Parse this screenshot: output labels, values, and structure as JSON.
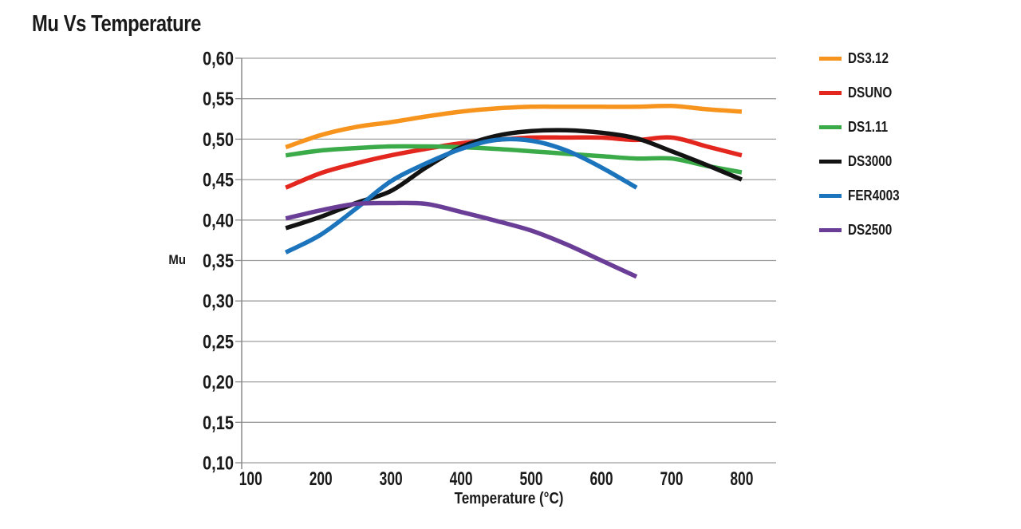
{
  "page": {
    "title": "Mu Vs Temperature"
  },
  "colors": {
    "grid": "#9e9e9e",
    "axis": "#8a8a8a",
    "text": "#1a1a1a",
    "background": "#ffffff"
  },
  "chart_data": {
    "type": "line",
    "title": "Mu Vs Temperature",
    "xlabel": "Temperature (°C)",
    "ylabel": "Mu",
    "xlim": [
      87.2,
      849
    ],
    "ylim": [
      0.1,
      0.6
    ],
    "xticks": [
      100,
      200,
      300,
      400,
      500,
      600,
      700,
      800
    ],
    "yticks": [
      0.1,
      0.15,
      0.2,
      0.25,
      0.3,
      0.35,
      0.4,
      0.45,
      0.5,
      0.55,
      0.6
    ],
    "ytick_labels": [
      "0,10",
      "0,15",
      "0,20",
      "0,25",
      "0,30",
      "0,35",
      "0,40",
      "0,45",
      "0,50",
      "0,55",
      "0,60"
    ],
    "grid": "horizontal",
    "legend_position": "right",
    "x": [
      150,
      200,
      250,
      300,
      350,
      400,
      450,
      500,
      550,
      600,
      650,
      700,
      750,
      800
    ],
    "series": [
      {
        "name": "DS3.12",
        "color": "#f7941d",
        "values": [
          0.49,
          0.505,
          0.515,
          0.521,
          0.528,
          0.534,
          0.538,
          0.54,
          0.54,
          0.54,
          0.54,
          0.541,
          0.537,
          0.534
        ]
      },
      {
        "name": "DSUNO",
        "color": "#e3271e",
        "values": [
          0.44,
          0.458,
          0.47,
          0.48,
          0.488,
          0.495,
          0.499,
          0.502,
          0.502,
          0.502,
          0.499,
          0.502,
          0.491,
          0.48
        ]
      },
      {
        "name": "DS1.11",
        "color": "#3bab49",
        "values": [
          0.48,
          0.486,
          0.489,
          0.491,
          0.491,
          0.49,
          0.488,
          0.485,
          0.482,
          0.479,
          0.476,
          0.476,
          0.467,
          0.459
        ]
      },
      {
        "name": "DS3000",
        "color": "#131313",
        "values": [
          0.39,
          0.404,
          0.421,
          0.436,
          0.465,
          0.49,
          0.504,
          0.51,
          0.511,
          0.508,
          0.501,
          0.485,
          0.468,
          0.45
        ]
      },
      {
        "name": "FER4003",
        "color": "#1c75bc",
        "values": [
          0.36,
          0.382,
          0.414,
          0.448,
          0.47,
          0.488,
          0.499,
          0.498,
          0.486,
          0.465,
          0.44
        ]
      },
      {
        "name": "DS2500",
        "color": "#6a3e96",
        "values": [
          0.402,
          0.412,
          0.42,
          0.421,
          0.42,
          0.41,
          0.399,
          0.387,
          0.37,
          0.35,
          0.33
        ]
      }
    ]
  }
}
